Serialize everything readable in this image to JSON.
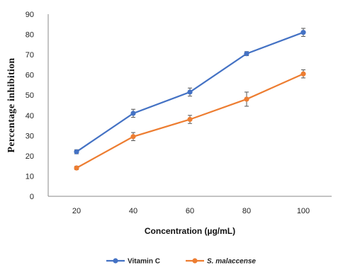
{
  "chart_data": {
    "type": "line",
    "title": "",
    "xlabel": "Concentration (µg/mL)",
    "ylabel": "Percentage inhibition",
    "categories": [
      "20",
      "40",
      "60",
      "80",
      "100"
    ],
    "ylim": [
      0,
      90
    ],
    "yticks": [
      0,
      10,
      20,
      30,
      40,
      50,
      60,
      70,
      80,
      90
    ],
    "grid": false,
    "legend_position": "bottom",
    "series": [
      {
        "name": "Vitamin C",
        "color": "#4472C4",
        "values": [
          22,
          41,
          51.5,
          70.5,
          81
        ],
        "errors": [
          1,
          2,
          2,
          1,
          2
        ],
        "italic": false
      },
      {
        "name": "S. malaccense",
        "color": "#ED7D31",
        "values": [
          14,
          29.5,
          38,
          48,
          60.5
        ],
        "errors": [
          0.8,
          2,
          2,
          3.5,
          2
        ],
        "italic": true
      }
    ]
  }
}
